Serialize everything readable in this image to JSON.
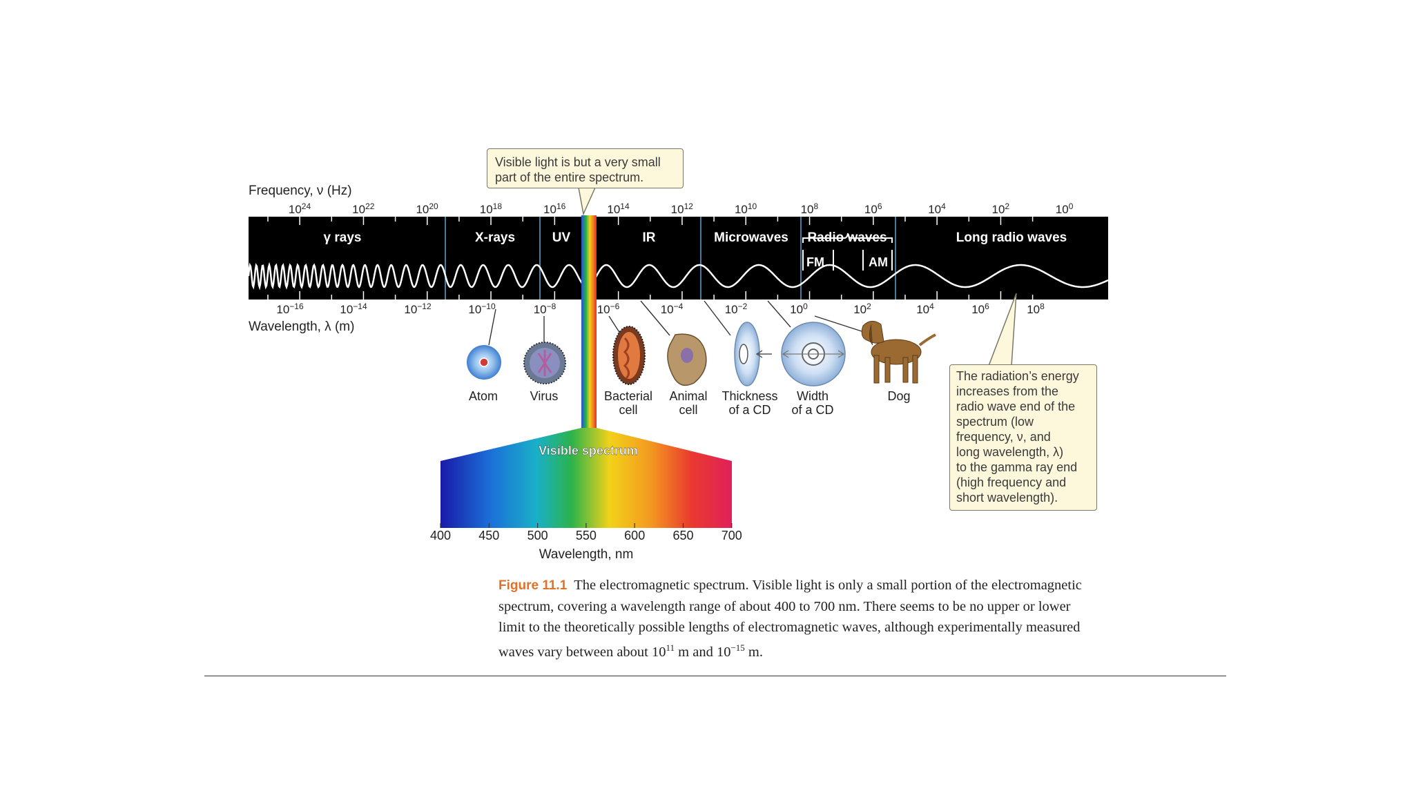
{
  "callouts": {
    "visible_note": [
      "Visible light is but a very small",
      "part of the entire spectrum."
    ],
    "energy_note": [
      "The radiation’s energy",
      "increases from the",
      "radio wave end of the",
      "spectrum (low",
      "frequency, ν, and",
      "long wavelength, λ)",
      "to the gamma ray end",
      "(high frequency and",
      "short wavelength)."
    ]
  },
  "frequency_axis": {
    "label": "Frequency, ν (Hz)",
    "ticks": [
      {
        "base": "10",
        "exp": "24"
      },
      {
        "base": "10",
        "exp": "22"
      },
      {
        "base": "10",
        "exp": "20"
      },
      {
        "base": "10",
        "exp": "18"
      },
      {
        "base": "10",
        "exp": "16"
      },
      {
        "base": "10",
        "exp": "14"
      },
      {
        "base": "10",
        "exp": "12"
      },
      {
        "base": "10",
        "exp": "10"
      },
      {
        "base": "10",
        "exp": "8"
      },
      {
        "base": "10",
        "exp": "6"
      },
      {
        "base": "10",
        "exp": "4"
      },
      {
        "base": "10",
        "exp": "2"
      },
      {
        "base": "10",
        "exp": "0"
      }
    ]
  },
  "wavelength_axis": {
    "label": "Wavelength, λ (m)",
    "ticks": [
      {
        "base": "10",
        "exp": "−16"
      },
      {
        "base": "10",
        "exp": "−14"
      },
      {
        "base": "10",
        "exp": "−12"
      },
      {
        "base": "10",
        "exp": "−10"
      },
      {
        "base": "10",
        "exp": "−8"
      },
      {
        "base": "10",
        "exp": "−6"
      },
      {
        "base": "10",
        "exp": "−4"
      },
      {
        "base": "10",
        "exp": "−2"
      },
      {
        "base": "10",
        "exp": "0"
      },
      {
        "base": "10",
        "exp": "2"
      },
      {
        "base": "10",
        "exp": "4"
      },
      {
        "base": "10",
        "exp": "6"
      },
      {
        "base": "10",
        "exp": "8"
      }
    ]
  },
  "bands": [
    "γ rays",
    "X-rays",
    "UV",
    "IR",
    "Microwaves",
    "Radio waves",
    "Long radio waves"
  ],
  "radio_subbands": [
    "FM",
    "AM"
  ],
  "objects": [
    {
      "id": "atom",
      "label": [
        "Atom"
      ]
    },
    {
      "id": "virus",
      "label": [
        "Virus"
      ]
    },
    {
      "id": "bacterial-cell",
      "label": [
        "Bacterial",
        "cell"
      ]
    },
    {
      "id": "animal-cell",
      "label": [
        "Animal",
        "cell"
      ]
    },
    {
      "id": "cd-thickness",
      "label": [
        "Thickness",
        "of a CD"
      ]
    },
    {
      "id": "cd-width",
      "label": [
        "Width",
        "of a CD"
      ]
    },
    {
      "id": "dog",
      "label": [
        "Dog"
      ]
    }
  ],
  "visible_spectrum": {
    "title": "Visible spectrum",
    "ticks": [
      "400",
      "450",
      "500",
      "550",
      "600",
      "650",
      "700"
    ],
    "axis_label": "Wavelength, nm"
  },
  "caption": {
    "label": "Figure 11.1",
    "text": "The electromagnetic spectrum. Visible light is only a small portion of the electromagnetic spectrum, covering a wavelength range of about 400 to 700 nm. There seems to be no upper or lower limit to the theoretically possible lengths of electromagnetic waves, although experimentally measured waves vary between about 10",
    "exp1": "11",
    "mid": " m and 10",
    "exp2": "−15",
    "end": " m."
  },
  "colors": {
    "band_bg": "#000000",
    "callout_bg": "#fdf8dc",
    "caption_label": "#e0702a",
    "divider_line": "#7fb6d6"
  }
}
